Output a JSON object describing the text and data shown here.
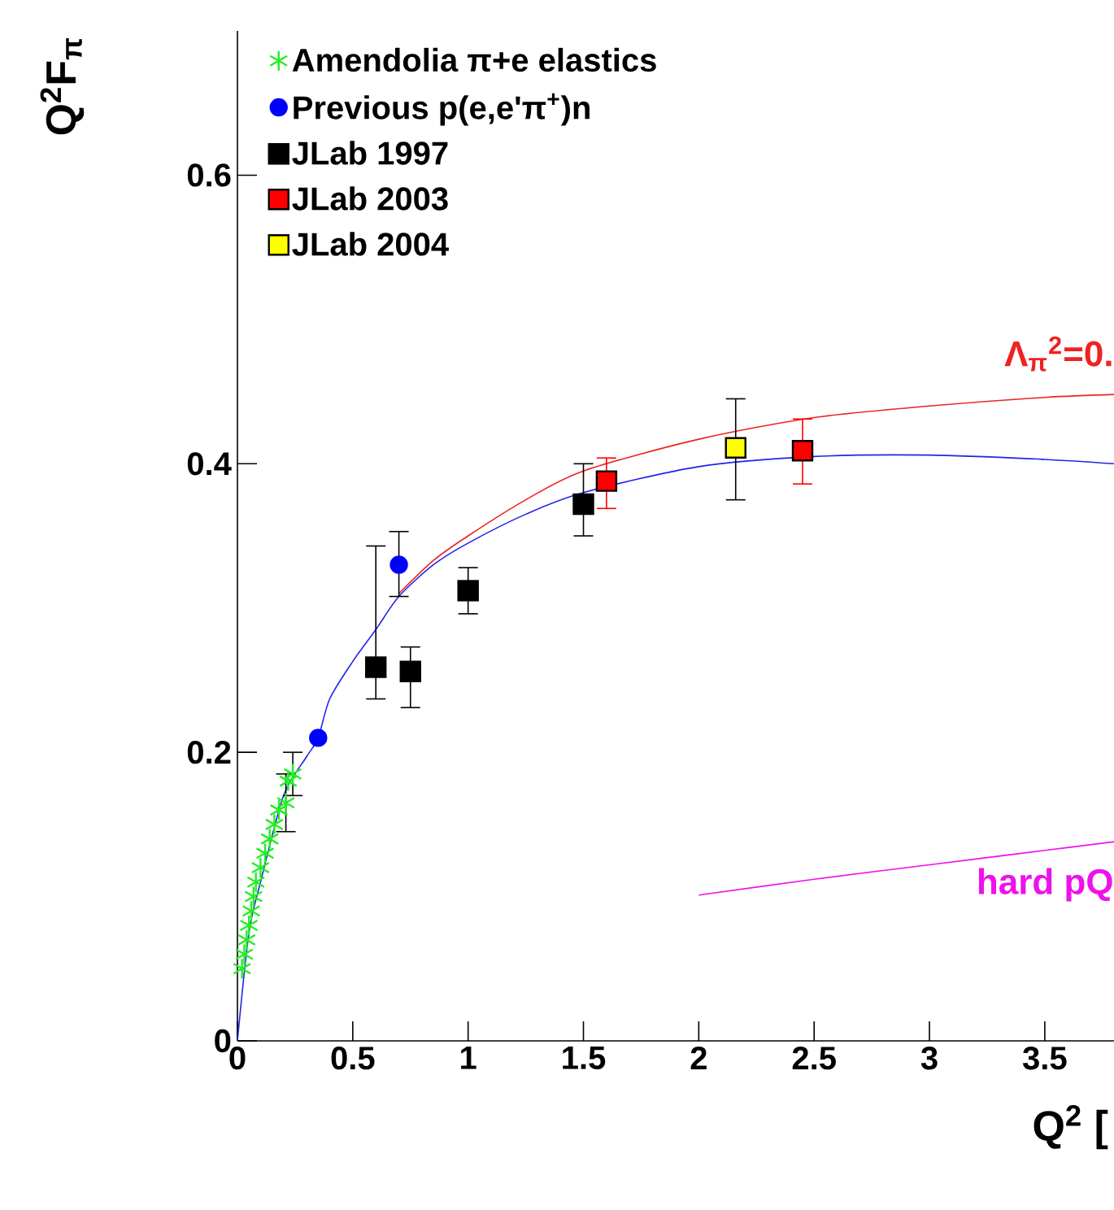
{
  "chart_data": {
    "type": "scatter",
    "xlabel": "Q$^{2}$ [",
    "ylabel": "Q$^{2}$F$_{π}$",
    "xlim": [
      0,
      3.8
    ],
    "ylim": [
      0,
      0.7
    ],
    "xticks": [
      0,
      0.5,
      1,
      1.5,
      2,
      2.5,
      3,
      3.5
    ],
    "yticks": [
      0,
      0.2,
      0.4,
      0.6
    ],
    "legend": "top left",
    "series": [
      {
        "type": "line",
        "name": "Λ$_{π}$$^{2}$=0.",
        "color": "#ee2222",
        "x": [
          0.7,
          0.85,
          1,
          1.25,
          1.5,
          2,
          2.5,
          3,
          3.5,
          3.8
        ],
        "values": [
          0.31,
          0.333,
          0.35,
          0.375,
          0.395,
          0.417,
          0.432,
          0.44,
          0.446,
          0.448
        ]
      },
      {
        "type": "line",
        "color": "#2222ee",
        "x": [
          0,
          0.05,
          0.1,
          0.2,
          0.3,
          0.35,
          0.4,
          0.5,
          0.6,
          0.7,
          0.85,
          1,
          1.25,
          1.5,
          2,
          2.5,
          3,
          3.5,
          3.8
        ],
        "values": [
          0,
          0.075,
          0.11,
          0.17,
          0.197,
          0.21,
          0.237,
          0.263,
          0.285,
          0.308,
          0.33,
          0.345,
          0.365,
          0.38,
          0.398,
          0.405,
          0.406,
          0.403,
          0.4
        ]
      },
      {
        "type": "line",
        "name": "hard pQ",
        "color": "#ee11ee",
        "x": [
          2,
          2.5,
          3,
          3.5,
          3.8
        ],
        "values": [
          0.101,
          0.112,
          0.122,
          0.132,
          0.138
        ]
      },
      {
        "name": "Amendolia π+e elastics",
        "color": "#22ee22",
        "marker": "cross",
        "x": [
          0.02,
          0.03,
          0.04,
          0.05,
          0.06,
          0.07,
          0.08,
          0.1,
          0.12,
          0.14,
          0.16,
          0.18,
          0.21,
          0.22,
          0.24
        ],
        "values": [
          0.05,
          0.06,
          0.07,
          0.08,
          0.09,
          0.1,
          0.11,
          0.12,
          0.13,
          0.14,
          0.15,
          0.16,
          0.165,
          0.18,
          0.185
        ],
        "errors": [
          null,
          null,
          null,
          null,
          null,
          null,
          null,
          null,
          null,
          null,
          null,
          null,
          0.02,
          null,
          0.015
        ]
      },
      {
        "name": "Previous p(e,e'π$^{+}$)n",
        "color": "#0000ff",
        "marker": "circle",
        "x": [
          0.35,
          0.7
        ],
        "values": [
          0.21,
          0.33
        ],
        "errors": [
          null,
          [
            0.308,
            0.353
          ]
        ]
      },
      {
        "name": "JLab 1997",
        "color": "#000000",
        "marker": "square",
        "x": [
          0.6,
          0.75,
          1,
          1.5
        ],
        "values": [
          0.259,
          0.256,
          0.312,
          0.372
        ],
        "errors": [
          [
            0.237,
            0.343
          ],
          [
            0.231,
            0.273
          ],
          [
            0.296,
            0.328
          ],
          [
            0.35,
            0.4
          ]
        ]
      },
      {
        "name": "JLab 2003",
        "color": "#ff0000",
        "marker": "square",
        "x": [
          1.6,
          2.45
        ],
        "values": [
          0.388,
          0.409
        ],
        "errors": [
          [
            0.369,
            0.404
          ],
          [
            0.386,
            0.431
          ]
        ]
      },
      {
        "name": "JLab 2004",
        "color": "#ffff00",
        "marker": "square",
        "x": [
          2.16
        ],
        "values": [
          0.411
        ],
        "errors": [
          [
            0.375,
            0.445
          ]
        ]
      }
    ]
  }
}
